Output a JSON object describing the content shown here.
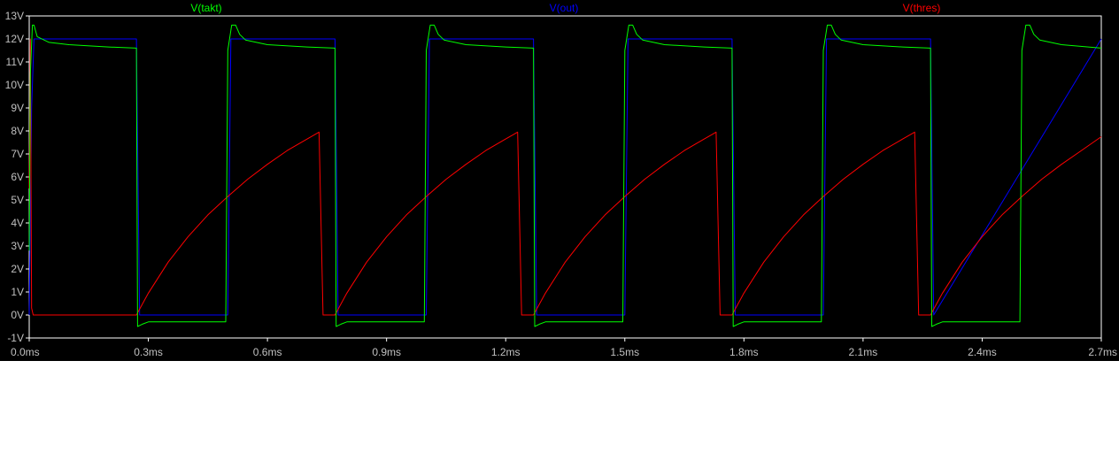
{
  "chart_data": {
    "type": "line",
    "title": "",
    "xlabel": "",
    "ylabel": "",
    "xlim": [
      0,
      2.7
    ],
    "ylim": [
      -1,
      13
    ],
    "x_ticks": [
      0,
      0.3,
      0.6,
      0.9,
      1.2,
      1.5,
      1.8,
      2.1,
      2.4,
      2.7
    ],
    "x_tick_labels": [
      "0.0ms",
      "0.3ms",
      "0.6ms",
      "0.9ms",
      "1.2ms",
      "1.5ms",
      "1.8ms",
      "2.1ms",
      "2.4ms",
      "2.7ms"
    ],
    "y_ticks": [
      -1,
      0,
      1,
      2,
      3,
      4,
      5,
      6,
      7,
      8,
      9,
      10,
      11,
      12,
      13
    ],
    "y_tick_labels": [
      "-1V",
      "0V",
      "1V",
      "2V",
      "3V",
      "4V",
      "5V",
      "6V",
      "7V",
      "8V",
      "9V",
      "10V",
      "11V",
      "12V",
      "13V"
    ],
    "grid": false,
    "legend_position": "top",
    "series": [
      {
        "name": "V(takt)",
        "color": "#00ff00",
        "x": [
          0,
          0.003,
          0.008,
          0.012,
          0.02,
          0.05,
          0.1,
          0.2,
          0.27,
          0.273,
          0.285,
          0.3,
          0.4,
          0.495,
          0.5,
          0.51,
          0.52,
          0.53,
          0.545,
          0.6,
          0.7,
          0.77,
          0.773,
          0.785,
          0.8,
          0.9,
          0.995,
          1.0,
          1.01,
          1.02,
          1.03,
          1.045,
          1.1,
          1.2,
          1.27,
          1.273,
          1.285,
          1.3,
          1.4,
          1.495,
          1.5,
          1.51,
          1.52,
          1.53,
          1.545,
          1.6,
          1.7,
          1.77,
          1.773,
          1.785,
          1.8,
          1.9,
          1.995,
          2.0,
          2.01,
          2.02,
          2.03,
          2.045,
          2.1,
          2.2,
          2.27,
          2.273,
          2.285,
          2.3,
          2.4,
          2.495,
          2.5,
          2.51,
          2.52,
          2.53,
          2.545,
          2.6,
          2.7
        ],
        "values": [
          2.8,
          10.5,
          12.6,
          12.6,
          12.1,
          11.85,
          11.75,
          11.65,
          11.6,
          -0.5,
          -0.4,
          -0.3,
          -0.3,
          -0.3,
          11.5,
          12.6,
          12.6,
          12.2,
          11.95,
          11.75,
          11.65,
          11.6,
          -0.5,
          -0.4,
          -0.3,
          -0.3,
          -0.3,
          11.5,
          12.6,
          12.6,
          12.2,
          11.95,
          11.75,
          11.65,
          11.6,
          -0.5,
          -0.4,
          -0.3,
          -0.3,
          -0.3,
          11.5,
          12.6,
          12.6,
          12.2,
          11.95,
          11.75,
          11.65,
          11.6,
          -0.5,
          -0.4,
          -0.3,
          -0.3,
          -0.3,
          11.5,
          12.6,
          12.6,
          12.2,
          11.95,
          11.75,
          11.65,
          11.6,
          -0.5,
          -0.4,
          -0.3,
          -0.3,
          -0.3,
          11.5,
          12.6,
          12.6,
          12.2,
          11.95,
          11.75,
          11.6
        ]
      },
      {
        "name": "V(out)",
        "color": "#0000ff",
        "x": [
          0,
          0.006,
          0.012,
          0.27,
          0.278,
          0.5,
          0.508,
          0.77,
          0.778,
          1.0,
          1.008,
          1.27,
          1.278,
          1.5,
          1.508,
          1.77,
          1.778,
          2.0,
          2.008,
          2.27,
          2.278,
          2.7
        ],
        "values": [
          0,
          9.0,
          12.0,
          12.0,
          0.0,
          0.0,
          12.0,
          12.0,
          0.0,
          0.0,
          12.0,
          12.0,
          0.0,
          0.0,
          12.0,
          12.0,
          0.0,
          0.0,
          12.0,
          12.0,
          0.0,
          12.0
        ]
      },
      {
        "name": "V(thres)",
        "color": "#ff0000",
        "x": [
          0,
          0.003,
          0.006,
          0.01,
          0.1,
          0.27,
          0.3,
          0.35,
          0.4,
          0.45,
          0.5,
          0.55,
          0.6,
          0.65,
          0.7,
          0.72,
          0.73,
          0.74,
          0.77,
          0.8,
          0.85,
          0.9,
          0.95,
          1.0,
          1.05,
          1.1,
          1.15,
          1.2,
          1.22,
          1.23,
          1.24,
          1.27,
          1.3,
          1.35,
          1.4,
          1.45,
          1.5,
          1.55,
          1.6,
          1.65,
          1.7,
          1.72,
          1.73,
          1.74,
          1.77,
          1.8,
          1.85,
          1.9,
          1.95,
          2.0,
          2.05,
          2.1,
          2.15,
          2.2,
          2.22,
          2.23,
          2.24,
          2.27,
          2.3,
          2.35,
          2.4,
          2.45,
          2.5,
          2.55,
          2.6,
          2.65,
          2.7
        ],
        "values": [
          5.5,
          12.0,
          0.3,
          0.0,
          0.0,
          0.0,
          0.95,
          2.3,
          3.4,
          4.35,
          5.15,
          5.9,
          6.55,
          7.15,
          7.65,
          7.85,
          7.95,
          0.0,
          0.0,
          0.95,
          2.3,
          3.4,
          4.35,
          5.15,
          5.9,
          6.55,
          7.15,
          7.65,
          7.85,
          7.95,
          0.0,
          0.0,
          0.95,
          2.3,
          3.4,
          4.35,
          5.15,
          5.9,
          6.55,
          7.15,
          7.65,
          7.85,
          7.95,
          0.0,
          0.0,
          0.95,
          2.3,
          3.4,
          4.35,
          5.15,
          5.9,
          6.55,
          7.15,
          7.65,
          7.85,
          7.95,
          0.0,
          0.0,
          0.95,
          2.3,
          3.4,
          4.35,
          5.15,
          5.9,
          6.55,
          7.15,
          7.75
        ]
      }
    ]
  }
}
